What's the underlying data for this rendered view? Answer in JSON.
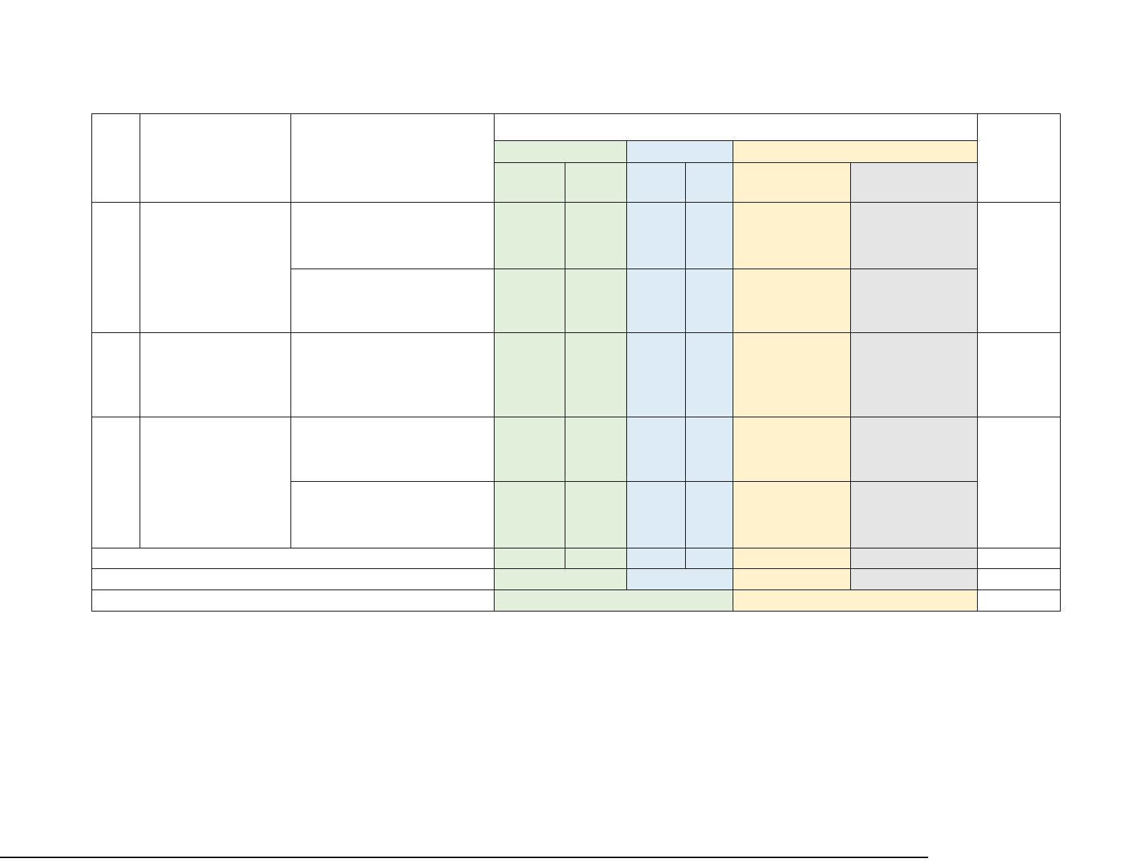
{
  "colors": {
    "green": "#e2efda",
    "blue": "#ddebf7",
    "yellow": "#fff2cc",
    "gray": "#e5e5e5",
    "white": "#ffffff",
    "border": "#000000"
  },
  "table": {
    "cells_text": "empty"
  }
}
